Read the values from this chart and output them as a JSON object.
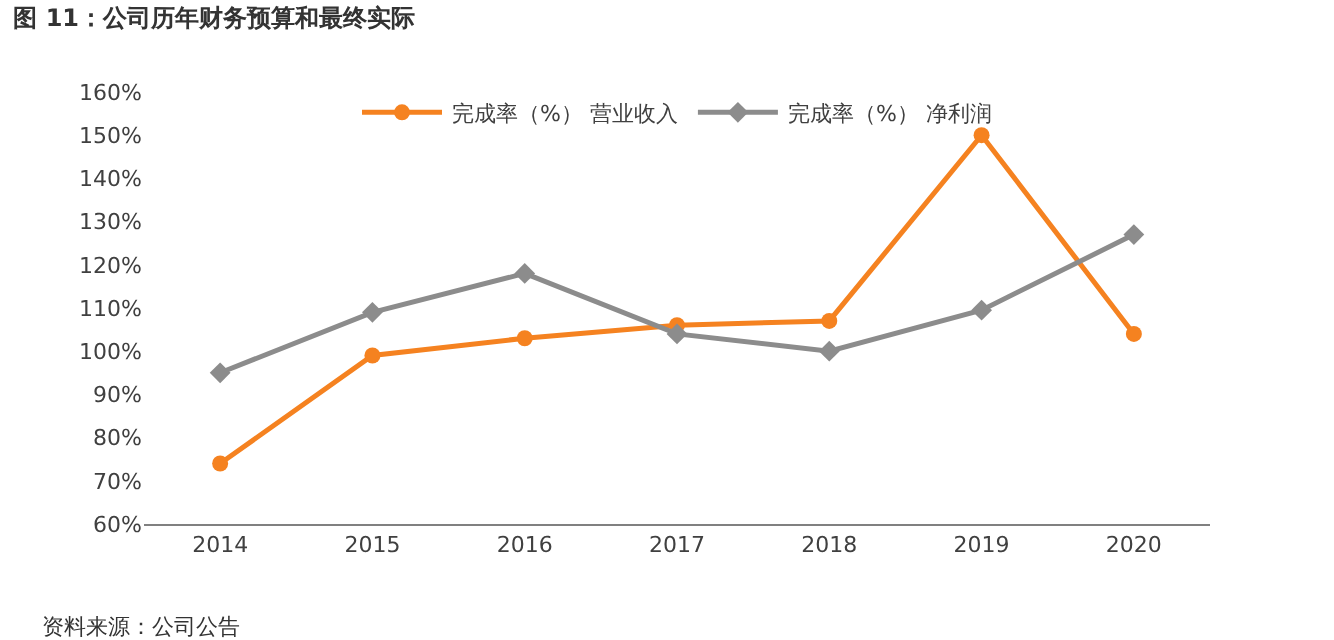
{
  "chart_data": {
    "type": "line",
    "title": "图 11：公司历年财务预算和最终实际",
    "annotations": [
      "资料来源：公司公告"
    ],
    "categories": [
      "2014",
      "2015",
      "2016",
      "2017",
      "2018",
      "2019",
      "2020"
    ],
    "series": [
      {
        "name": "完成率（%） 营业收入",
        "color": "#f58220",
        "marker": "circle",
        "values": [
          74,
          99,
          103,
          106,
          107,
          150,
          104
        ]
      },
      {
        "name": "完成率（%） 净利润",
        "color": "#8c8c8c",
        "marker": "diamond",
        "values": [
          95,
          109,
          118,
          104,
          100,
          109.5,
          127
        ]
      }
    ],
    "ylim": [
      60,
      160
    ],
    "yticks": [
      {
        "value": 60,
        "label": "60%"
      },
      {
        "value": 70,
        "label": "70%"
      },
      {
        "value": 80,
        "label": "80%"
      },
      {
        "value": 90,
        "label": "90%"
      },
      {
        "value": 100,
        "label": "100%"
      },
      {
        "value": 110,
        "label": "110%"
      },
      {
        "value": 120,
        "label": "120%"
      },
      {
        "value": 130,
        "label": "130%"
      },
      {
        "value": 140,
        "label": "140%"
      },
      {
        "value": 150,
        "label": "150%"
      },
      {
        "value": 160,
        "label": "160%"
      }
    ],
    "grid": false,
    "legend": "top",
    "line_style": "solid"
  }
}
